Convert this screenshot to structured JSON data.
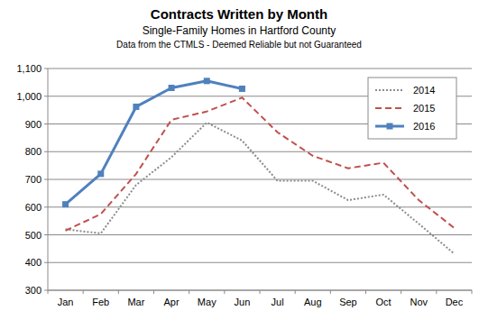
{
  "chart_data": {
    "type": "line",
    "title": "Contracts Written by Month",
    "subtitle": "Single-Family Homes in Hartford County",
    "annotations": [
      "Data from the CTMLS - Deemed Reliable but not Guaranteed"
    ],
    "categories": [
      "Jan",
      "Feb",
      "Mar",
      "Apr",
      "May",
      "Jun",
      "Jul",
      "Aug",
      "Sep",
      "Oct",
      "Nov",
      "Dec"
    ],
    "series": [
      {
        "name": "2014",
        "color": "#8c8c8c",
        "line_style": "dotted",
        "values": [
          520,
          505,
          680,
          780,
          905,
          840,
          695,
          695,
          625,
          645,
          540,
          432
        ]
      },
      {
        "name": "2015",
        "color": "#c0504d",
        "line_style": "dashed",
        "values": [
          515,
          575,
          720,
          915,
          945,
          995,
          870,
          785,
          740,
          760,
          625,
          525
        ]
      },
      {
        "name": "2016",
        "color": "#4f81bd",
        "line_style": "solid",
        "marker": "square",
        "values": [
          610,
          720,
          962,
          1030,
          1055,
          1027,
          null,
          null,
          null,
          null,
          null,
          null
        ]
      }
    ],
    "ylim": [
      300,
      1100
    ],
    "yticks": [
      300,
      400,
      500,
      600,
      700,
      800,
      900,
      {
        "value": 1000,
        "label": "1,000"
      },
      {
        "value": 1100,
        "label": "1,100"
      }
    ],
    "grid": true,
    "legend": "top-right"
  }
}
